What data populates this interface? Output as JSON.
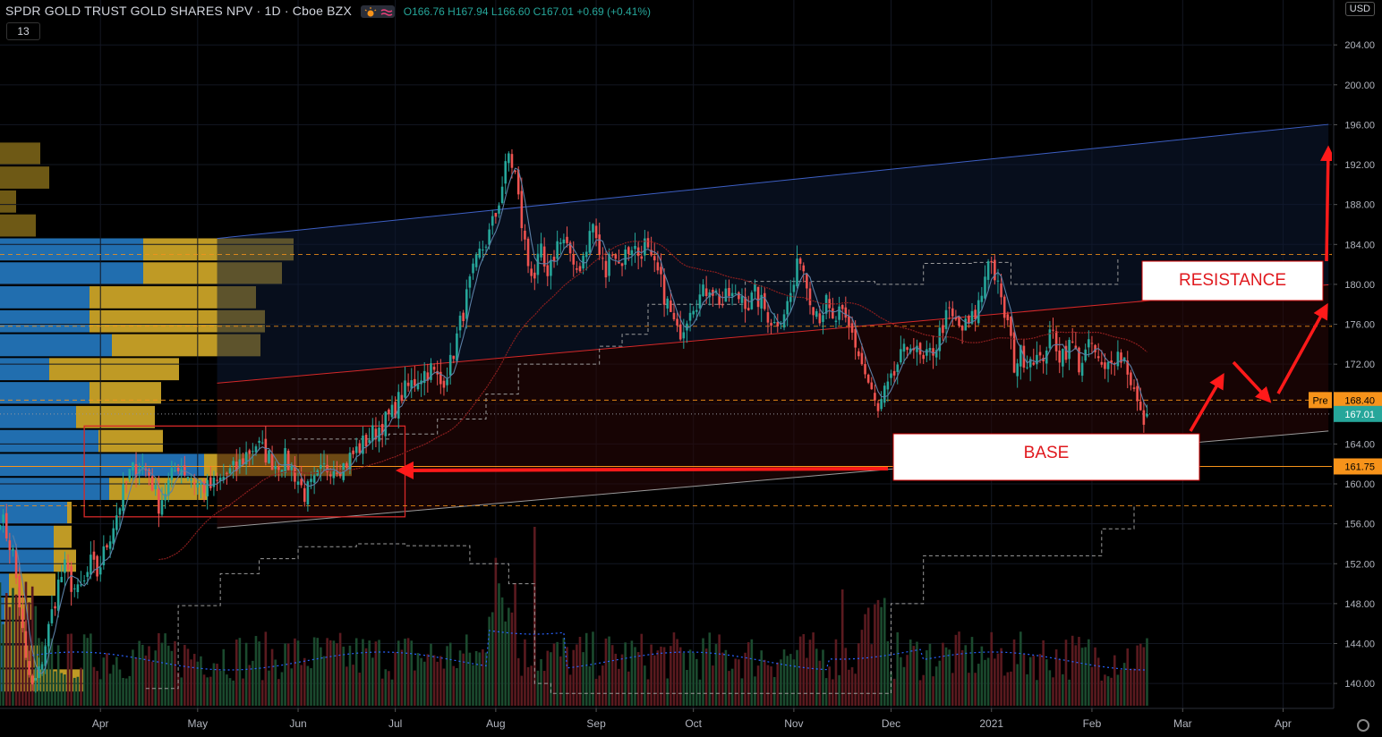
{
  "header": {
    "symbol": "SPDR GOLD TRUST GOLD SHARES NPV · 1D · Cboe BZX",
    "ohlc_open": "O166.76",
    "ohlc_high": "H167.94",
    "ohlc_low": "L166.60",
    "ohlc_close": "C167.01",
    "ohlc_change": "+0.69 (+0.41%)",
    "indicator_badge": "13",
    "currency": "USD"
  },
  "chart_data": {
    "type": "candlestick",
    "y_ticks": [
      140,
      144,
      148,
      152,
      156,
      160,
      164,
      168,
      172,
      176,
      180,
      184,
      188,
      192,
      196,
      200,
      204
    ],
    "y_tick_labels": [
      "140.00",
      "144.00",
      "148.00",
      "152.00",
      "156.00",
      "160.00",
      "164.00",
      "168.00",
      "172.00",
      "176.00",
      "180.00",
      "184.00",
      "188.00",
      "192.00",
      "196.00",
      "200.00",
      "204.00"
    ],
    "ylim": [
      137.5,
      208.5
    ],
    "x_labels": [
      "Apr",
      "May",
      "Jun",
      "Jul",
      "Aug",
      "Sep",
      "Oct",
      "Nov",
      "Dec",
      "2021",
      "Feb",
      "Mar",
      "Apr"
    ],
    "x_label_days": [
      31,
      61,
      92,
      122,
      153,
      184,
      214,
      245,
      275,
      306,
      337,
      365,
      396
    ],
    "last_day": 354,
    "price_tags": [
      {
        "label": "Pre",
        "value": "168.40",
        "price": 168.4,
        "color": "#f7931a"
      },
      {
        "label": "",
        "value": "167.01",
        "price": 167.01,
        "color": "#26a69a"
      },
      {
        "label": "",
        "value": "161.75",
        "price": 161.75,
        "color": "#f7931a"
      }
    ],
    "horizontal_levels": [
      183.0,
      175.8,
      168.4,
      157.8
    ],
    "annotations": {
      "resistance": "RESISTANCE",
      "base": "BASE"
    },
    "anchors": [
      [
        0,
        157
      ],
      [
        2,
        155
      ],
      [
        4,
        153
      ],
      [
        6,
        148
      ],
      [
        8,
        142
      ],
      [
        10,
        139.5
      ],
      [
        12,
        141
      ],
      [
        14,
        144
      ],
      [
        16,
        147
      ],
      [
        18,
        150
      ],
      [
        20,
        151.5
      ],
      [
        22,
        150
      ],
      [
        24,
        149
      ],
      [
        26,
        150
      ],
      [
        28,
        152
      ],
      [
        30,
        151
      ],
      [
        32,
        153
      ],
      [
        34,
        155
      ],
      [
        36,
        157
      ],
      [
        38,
        159
      ],
      [
        40,
        161
      ],
      [
        43,
        162
      ],
      [
        46,
        161
      ],
      [
        49,
        158
      ],
      [
        52,
        160
      ],
      [
        55,
        162
      ],
      [
        58,
        161
      ],
      [
        61,
        160
      ],
      [
        64,
        159.5
      ],
      [
        67,
        160
      ],
      [
        70,
        161
      ],
      [
        73,
        161.5
      ],
      [
        76,
        163
      ],
      [
        79,
        164
      ],
      [
        82,
        163
      ],
      [
        85,
        162
      ],
      [
        88,
        162.5
      ],
      [
        91,
        161
      ],
      [
        94,
        159
      ],
      [
        97,
        160
      ],
      [
        100,
        161.5
      ],
      [
        103,
        162
      ],
      [
        106,
        161.8
      ],
      [
        109,
        163
      ],
      [
        112,
        164
      ],
      [
        115,
        165
      ],
      [
        118,
        166
      ],
      [
        121,
        167
      ],
      [
        124,
        169
      ],
      [
        127,
        170
      ],
      [
        130,
        171
      ],
      [
        133,
        171.5
      ],
      [
        136,
        170
      ],
      [
        139,
        172
      ],
      [
        142,
        176
      ],
      [
        145,
        180
      ],
      [
        148,
        183
      ],
      [
        151,
        185
      ],
      [
        153,
        187
      ],
      [
        155,
        190
      ],
      [
        157,
        193
      ],
      [
        159,
        191
      ],
      [
        161,
        186
      ],
      [
        163,
        182
      ],
      [
        165,
        181
      ],
      [
        167,
        183
      ],
      [
        169,
        180
      ],
      [
        171,
        183
      ],
      [
        173,
        185
      ],
      [
        175,
        184
      ],
      [
        177,
        181
      ],
      [
        179,
        182
      ],
      [
        181,
        184
      ],
      [
        183,
        186
      ],
      [
        185,
        183
      ],
      [
        187,
        181
      ],
      [
        189,
        184
      ],
      [
        191,
        182
      ],
      [
        193,
        183
      ],
      [
        195,
        184
      ],
      [
        197,
        183
      ],
      [
        199,
        184
      ],
      [
        201,
        182
      ],
      [
        203,
        181
      ],
      [
        205,
        179
      ],
      [
        207,
        177
      ],
      [
        209,
        175
      ],
      [
        211,
        176
      ],
      [
        213,
        178
      ],
      [
        215,
        178.5
      ],
      [
        217,
        179
      ],
      [
        219,
        180
      ],
      [
        221,
        179
      ],
      [
        223,
        178
      ],
      [
        225,
        179
      ],
      [
        227,
        178.5
      ],
      [
        229,
        179
      ],
      [
        231,
        178
      ],
      [
        233,
        179
      ],
      [
        235,
        178
      ],
      [
        237,
        177
      ],
      [
        239,
        176
      ],
      [
        241,
        177
      ],
      [
        243,
        178
      ],
      [
        245,
        180
      ],
      [
        247,
        183
      ],
      [
        249,
        180
      ],
      [
        251,
        178
      ],
      [
        253,
        177
      ],
      [
        255,
        178
      ],
      [
        257,
        176
      ],
      [
        259,
        177
      ],
      [
        261,
        176
      ],
      [
        263,
        175
      ],
      [
        265,
        173
      ],
      [
        267,
        171
      ],
      [
        269,
        169
      ],
      [
        271,
        167
      ],
      [
        273,
        169
      ],
      [
        275,
        170
      ],
      [
        277,
        172
      ],
      [
        279,
        173
      ],
      [
        281,
        174.5
      ],
      [
        283,
        173
      ],
      [
        285,
        172
      ],
      [
        287,
        173
      ],
      [
        289,
        174
      ],
      [
        291,
        176
      ],
      [
        293,
        177
      ],
      [
        295,
        176
      ],
      [
        297,
        175.5
      ],
      [
        299,
        176
      ],
      [
        301,
        177
      ],
      [
        303,
        179
      ],
      [
        305,
        183
      ],
      [
        307,
        181
      ],
      [
        309,
        178
      ],
      [
        311,
        176
      ],
      [
        313,
        172
      ],
      [
        315,
        173
      ],
      [
        317,
        172.5
      ],
      [
        319,
        173
      ],
      [
        321,
        172
      ],
      [
        323,
        174
      ],
      [
        325,
        175
      ],
      [
        327,
        173
      ],
      [
        329,
        173.5
      ],
      [
        331,
        174
      ],
      [
        333,
        172
      ],
      [
        335,
        173
      ],
      [
        337,
        174
      ],
      [
        339,
        172
      ],
      [
        341,
        171
      ],
      [
        343,
        173
      ],
      [
        345,
        173
      ],
      [
        347,
        172.5
      ],
      [
        349,
        170.5
      ],
      [
        351,
        168
      ],
      [
        352,
        166.7
      ],
      [
        353,
        166.5
      ],
      [
        354,
        167.01
      ]
    ]
  }
}
